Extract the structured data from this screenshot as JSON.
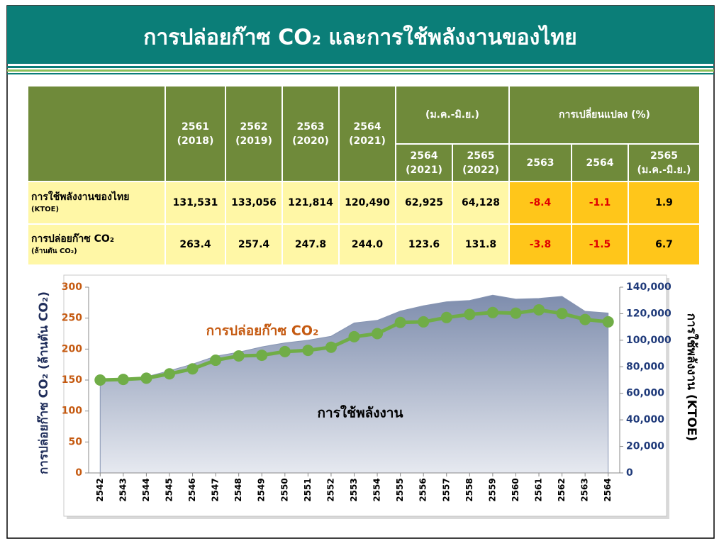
{
  "header": {
    "title": "การปล่อยก๊าซ CO₂ และการใช้พลังงานของไทย"
  },
  "table": {
    "year_columns": [
      {
        "year": "2561",
        "ad": "(2018)"
      },
      {
        "year": "2562",
        "ad": "(2019)"
      },
      {
        "year": "2563",
        "ad": "(2020)"
      },
      {
        "year": "2564",
        "ad": "(2021)"
      }
    ],
    "period_header": "(ม.ค.-มิ.ย.)",
    "period_columns": [
      {
        "year": "2564",
        "ad": "(2021)"
      },
      {
        "year": "2565",
        "ad": "(2022)"
      }
    ],
    "change_header": "การเปลี่ยนแปลง (%)",
    "change_columns": [
      {
        "year": "2563"
      },
      {
        "year": "2564"
      },
      {
        "year": "2565",
        "ad": "(ม.ค.-มิ.ย.)"
      }
    ],
    "rows": [
      {
        "label": "การใช้พลังงานของไทย",
        "unit": "(KTOE)",
        "cells": [
          "131,531",
          "133,056",
          "121,814",
          "120,490",
          "62,925",
          "64,128",
          "-8.4",
          "-1.1",
          "1.9"
        ]
      },
      {
        "label": "การปล่อยก๊าซ CO₂",
        "unit": "(ล้านตัน CO₂)",
        "cells": [
          "263.4",
          "257.4",
          "247.8",
          "244.0",
          "123.6",
          "131.8",
          "-3.8",
          "-1.5",
          "6.7"
        ]
      }
    ]
  },
  "chart_data": {
    "type": "line",
    "categories": [
      "2542",
      "2543",
      "2544",
      "2545",
      "2546",
      "2547",
      "2548",
      "2549",
      "2550",
      "2551",
      "2552",
      "2553",
      "2554",
      "2555",
      "2556",
      "2557",
      "2558",
      "2559",
      "2560",
      "2561",
      "2562",
      "2563",
      "2564"
    ],
    "series": [
      {
        "name": "การใช้พลังงาน",
        "type": "area",
        "axis": "y2",
        "color": "#8795b3",
        "values": [
          70000,
          71000,
          72500,
          77000,
          82000,
          88000,
          91000,
          95000,
          98000,
          100000,
          103000,
          113000,
          115000,
          122000,
          126000,
          129000,
          130000,
          134000,
          131000,
          131531,
          133056,
          121814,
          120490
        ]
      },
      {
        "name": "การปล่อยก๊าซ CO₂",
        "type": "line",
        "color": "#70ad47",
        "values": [
          150,
          151,
          153,
          160,
          168,
          182,
          189,
          190,
          196,
          198,
          203,
          220,
          225,
          243,
          244,
          251,
          256,
          259,
          258,
          263.4,
          257.4,
          247.8,
          244.0
        ]
      }
    ],
    "ylabel": "การปล่อยก๊าซ CO₂ (ล้านตัน CO₂)",
    "y2label": "การใช้พลังงาน (KTOE)",
    "ylim": [
      0,
      300
    ],
    "yticks": [
      0,
      50,
      100,
      150,
      200,
      250,
      300
    ],
    "y2lim": [
      0,
      140000
    ],
    "y2ticks": [
      0,
      {
        "value": 20000,
        "label": "20,000"
      },
      {
        "value": 40000,
        "label": "40,000"
      },
      {
        "value": 60000,
        "label": "60,000"
      },
      {
        "value": 80000,
        "label": "80,000"
      },
      {
        "value": 100000,
        "label": "100,000"
      },
      {
        "value": 120000,
        "label": "120,000"
      },
      {
        "value": 140000,
        "label": "140,000"
      }
    ],
    "grid": false
  }
}
